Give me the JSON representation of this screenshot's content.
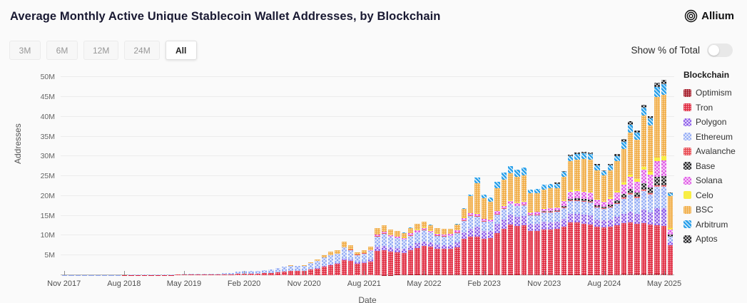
{
  "header": {
    "title": "Average Monthly Active Unique Stablecoin Wallet Addresses, by Blockchain",
    "brand": "Allium"
  },
  "controls": {
    "range_buttons": [
      {
        "label": "3M",
        "selected": false
      },
      {
        "label": "6M",
        "selected": false
      },
      {
        "label": "12M",
        "selected": false
      },
      {
        "label": "24M",
        "selected": false
      },
      {
        "label": "All",
        "selected": true
      }
    ],
    "toggle": {
      "label": "Show % of Total",
      "on": false
    }
  },
  "chart_data": {
    "type": "bar",
    "stacked": true,
    "title": "Average Monthly Active Unique Stablecoin Wallet Addresses, by Blockchain",
    "xlabel": "Date",
    "ylabel": "Addresses",
    "legend_title": "Blockchain",
    "legend_position": "right",
    "grid": true,
    "unit": "millions of addresses",
    "x_start": "Nov 2017",
    "x_end": "Jun 2025",
    "x_interval": "monthly",
    "n_bars": 92,
    "ylim": [
      0,
      51.5
    ],
    "ytick_values": [
      5,
      10,
      15,
      20,
      25,
      30,
      35,
      40,
      45,
      50
    ],
    "ytick_suffix": "M",
    "xtick_indices": [
      0,
      9,
      18,
      27,
      36,
      45,
      54,
      63,
      72,
      81,
      90
    ],
    "xtick_labels": [
      "Nov 2017",
      "Aug 2018",
      "May 2019",
      "Feb 2020",
      "Nov 2020",
      "Aug 2021",
      "May 2022",
      "Feb 2023",
      "Nov 2023",
      "Aug 2024",
      "May 2025"
    ],
    "series": [
      {
        "name": "Optimism",
        "color": "#a11220",
        "pattern": "dots",
        "values": [
          0,
          0,
          0,
          0,
          0,
          0,
          0,
          0,
          0,
          0,
          0,
          0,
          0,
          0,
          0,
          0,
          0,
          0,
          0,
          0,
          0,
          0,
          0,
          0,
          0,
          0,
          0,
          0,
          0,
          0,
          0,
          0,
          0,
          0,
          0,
          0,
          0,
          0,
          0,
          0,
          0,
          0,
          0,
          0,
          0,
          0,
          0,
          0,
          0.05,
          0.05,
          0.1,
          0.1,
          0.1,
          0.1,
          0.15,
          0.15,
          0.1,
          0.1,
          0.1,
          0.1,
          0.15,
          0.2,
          0.2,
          0.15,
          0.15,
          0.2,
          0.2,
          0.25,
          0.2,
          0.2,
          0.15,
          0.15,
          0.2,
          0.2,
          0.2,
          0.2,
          0.25,
          0.25,
          0.25,
          0.25,
          0.2,
          0.2,
          0.2,
          0.25,
          0.3,
          0.3,
          0.3,
          0.3,
          0.3,
          0.35,
          0.35,
          0.15
        ]
      },
      {
        "name": "Tron",
        "color": "#df2239",
        "pattern": "dots",
        "values": [
          0,
          0,
          0,
          0,
          0,
          0,
          0,
          0.01,
          0.01,
          0.02,
          0.02,
          0.03,
          0.04,
          0.05,
          0.05,
          0.06,
          0.08,
          0.1,
          0.12,
          0.14,
          0.16,
          0.18,
          0.2,
          0.22,
          0.24,
          0.26,
          0.3,
          0.4,
          0.35,
          0.4,
          0.5,
          0.6,
          0.7,
          0.9,
          1.0,
          1.0,
          1.1,
          1.4,
          1.7,
          2.2,
          2.6,
          2.8,
          3.8,
          3.6,
          2.9,
          3.0,
          3.5,
          6.2,
          6.3,
          5.9,
          5.7,
          5.5,
          6.2,
          6.8,
          7.2,
          7.0,
          6.6,
          6.5,
          6.5,
          7.0,
          9.0,
          9.5,
          9.5,
          9.0,
          9.2,
          10.5,
          11.5,
          12.5,
          12.2,
          12.4,
          11.0,
          11.0,
          11.4,
          11.3,
          11.5,
          12.0,
          13.0,
          13.0,
          12.8,
          12.6,
          12.0,
          11.8,
          12.0,
          12.4,
          12.8,
          13.0,
          12.6,
          12.8,
          12.4,
          12.2,
          12.0,
          7.5
        ]
      },
      {
        "name": "Polygon",
        "color": "#8856e8",
        "pattern": "cross",
        "values": [
          0,
          0,
          0,
          0,
          0,
          0,
          0,
          0,
          0,
          0,
          0,
          0,
          0,
          0,
          0,
          0,
          0,
          0,
          0,
          0,
          0,
          0,
          0,
          0,
          0,
          0,
          0,
          0,
          0,
          0,
          0,
          0,
          0,
          0,
          0,
          0,
          0.02,
          0.05,
          0.05,
          0.1,
          0.15,
          0.2,
          0.3,
          0.3,
          0.3,
          0.4,
          0.5,
          1.0,
          1.1,
          1.0,
          1.0,
          1.0,
          1.1,
          1.2,
          1.2,
          1.1,
          1.0,
          1.0,
          1.0,
          1.2,
          1.6,
          2.0,
          2.5,
          2.0,
          1.8,
          2.2,
          2.4,
          2.5,
          2.4,
          2.4,
          1.8,
          1.8,
          1.9,
          1.9,
          1.8,
          2.0,
          2.2,
          2.2,
          2.2,
          2.2,
          1.9,
          1.8,
          1.9,
          2.1,
          2.4,
          2.8,
          2.6,
          3.4,
          3.2,
          4.4,
          4.5,
          0.8
        ]
      },
      {
        "name": "Ethereum",
        "color": "#90a9f4",
        "pattern": "cross",
        "values": [
          0.03,
          0.05,
          0.06,
          0.05,
          0.05,
          0.05,
          0.06,
          0.06,
          0.06,
          0.07,
          0.08,
          0.09,
          0.1,
          0.12,
          0.13,
          0.14,
          0.15,
          0.16,
          0.18,
          0.2,
          0.21,
          0.2,
          0.21,
          0.2,
          0.23,
          0.25,
          0.6,
          0.75,
          0.65,
          0.7,
          0.8,
          0.9,
          1.1,
          1.3,
          1.4,
          1.3,
          1.3,
          1.6,
          1.9,
          2.2,
          2.3,
          2.4,
          2.9,
          2.4,
          1.9,
          2.0,
          2.1,
          2.6,
          3.0,
          2.7,
          2.5,
          2.4,
          2.6,
          2.7,
          2.8,
          2.5,
          2.3,
          2.2,
          2.3,
          2.4,
          3.0,
          3.2,
          2.6,
          2.4,
          2.3,
          2.5,
          2.6,
          2.7,
          2.6,
          2.6,
          2.2,
          2.2,
          2.3,
          2.4,
          2.5,
          2.8,
          3.2,
          3.3,
          3.3,
          3.3,
          3.0,
          2.9,
          3.0,
          3.3,
          3.8,
          4.3,
          4.0,
          4.8,
          4.5,
          5.4,
          5.5,
          1.2
        ]
      },
      {
        "name": "Avalanche",
        "color": "#e8444c",
        "pattern": "dots",
        "values": [
          0,
          0,
          0,
          0,
          0,
          0,
          0,
          0,
          0,
          0,
          0,
          0,
          0,
          0,
          0,
          0,
          0,
          0,
          0,
          0,
          0,
          0,
          0,
          0,
          0,
          0,
          0,
          0,
          0,
          0,
          0,
          0,
          0,
          0,
          0,
          0,
          0,
          0,
          0,
          0,
          0,
          0.05,
          0.1,
          0.1,
          0.05,
          0.1,
          0.1,
          0.15,
          0.15,
          0.1,
          0.05,
          0.05,
          0.1,
          0.1,
          0.1,
          0.1,
          0.1,
          0.1,
          0.1,
          0.1,
          0.15,
          0.15,
          0.15,
          0.1,
          0.1,
          0.15,
          0.15,
          0.15,
          0.15,
          0.15,
          0.1,
          0.1,
          0.15,
          0.15,
          0.15,
          0.15,
          0.2,
          0.2,
          0.2,
          0.2,
          0.15,
          0.15,
          0.15,
          0.2,
          0.25,
          0.25,
          0.25,
          0.3,
          0.3,
          0.35,
          0.35,
          0.1
        ]
      },
      {
        "name": "Base",
        "color": "#17171a",
        "pattern": "cross",
        "values": [
          0,
          0,
          0,
          0,
          0,
          0,
          0,
          0,
          0,
          0,
          0,
          0,
          0,
          0,
          0,
          0,
          0,
          0,
          0,
          0,
          0,
          0,
          0,
          0,
          0,
          0,
          0,
          0,
          0,
          0,
          0,
          0,
          0,
          0,
          0,
          0,
          0,
          0,
          0,
          0,
          0,
          0,
          0,
          0,
          0,
          0,
          0,
          0,
          0,
          0,
          0,
          0,
          0,
          0,
          0,
          0,
          0,
          0,
          0,
          0,
          0,
          0,
          0,
          0,
          0,
          0,
          0,
          0,
          0,
          0.1,
          0.15,
          0.15,
          0.2,
          0.2,
          0.2,
          0.3,
          0.5,
          0.5,
          0.5,
          0.5,
          0.4,
          0.4,
          0.5,
          0.7,
          0.9,
          1.2,
          1.1,
          1.6,
          1.5,
          2.2,
          2.3,
          0.5
        ]
      },
      {
        "name": "Solana",
        "color": "#de52e4",
        "pattern": "cross",
        "values": [
          0,
          0,
          0,
          0,
          0,
          0,
          0,
          0,
          0,
          0,
          0,
          0,
          0,
          0,
          0,
          0,
          0,
          0,
          0,
          0,
          0,
          0,
          0,
          0,
          0,
          0,
          0,
          0,
          0,
          0,
          0,
          0,
          0,
          0,
          0,
          0,
          0,
          0,
          0,
          0,
          0,
          0,
          0,
          0,
          0,
          0.05,
          0.1,
          0.3,
          0.35,
          0.3,
          0.4,
          0.4,
          0.5,
          0.5,
          0.5,
          0.4,
          0.4,
          0.4,
          0.4,
          0.5,
          0.6,
          0.6,
          0.6,
          0.5,
          0.5,
          0.6,
          0.7,
          0.7,
          0.7,
          0.7,
          0.5,
          0.6,
          0.6,
          0.7,
          0.8,
          1.2,
          1.8,
          1.8,
          1.8,
          1.8,
          1.4,
          1.3,
          1.5,
          1.9,
          2.5,
          3.0,
          2.8,
          3.4,
          3.2,
          3.9,
          4.0,
          1.2
        ]
      },
      {
        "name": "Celo",
        "color": "#f8ee44",
        "pattern": "solid",
        "values": [
          0,
          0,
          0,
          0,
          0,
          0,
          0,
          0,
          0,
          0,
          0,
          0,
          0,
          0,
          0,
          0,
          0,
          0,
          0,
          0,
          0,
          0,
          0,
          0,
          0,
          0,
          0,
          0,
          0,
          0,
          0,
          0,
          0,
          0,
          0,
          0,
          0,
          0,
          0,
          0,
          0,
          0,
          0,
          0,
          0,
          0,
          0,
          0,
          0,
          0,
          0.05,
          0.05,
          0.05,
          0.05,
          0.05,
          0.05,
          0.05,
          0.05,
          0.05,
          0.05,
          0.05,
          0.05,
          0.1,
          0.1,
          0.1,
          0.1,
          0.1,
          0.1,
          0.1,
          0.1,
          0.1,
          0.1,
          0.15,
          0.15,
          0.1,
          0.2,
          0.3,
          0.3,
          0.3,
          0.3,
          0.3,
          0.2,
          0.3,
          0.4,
          0.5,
          0.6,
          0.6,
          0.8,
          0.7,
          0.9,
          1.0,
          0.5
        ]
      },
      {
        "name": "BSC",
        "color": "#f0a93e",
        "pattern": "dots",
        "values": [
          0,
          0,
          0,
          0,
          0,
          0,
          0,
          0,
          0,
          0,
          0,
          0,
          0,
          0,
          0,
          0,
          0,
          0,
          0,
          0,
          0,
          0,
          0,
          0,
          0,
          0,
          0,
          0,
          0,
          0,
          0,
          0,
          0,
          0,
          0.1,
          0.1,
          0.1,
          0.15,
          0.3,
          0.6,
          0.9,
          0.9,
          1.4,
          1.1,
          0.6,
          0.7,
          0.9,
          1.6,
          1.6,
          1.5,
          1.3,
          1.2,
          1.3,
          1.5,
          1.5,
          1.4,
          1.3,
          1.3,
          1.2,
          1.4,
          2.2,
          4.3,
          7.5,
          5.3,
          4.5,
          5.8,
          6.5,
          6.8,
          6.5,
          6.6,
          4.7,
          4.7,
          4.8,
          4.9,
          4.8,
          6.0,
          7.3,
          7.6,
          8.0,
          8.0,
          7.2,
          6.5,
          7.0,
          7.5,
          8.5,
          10.5,
          10.0,
          13.0,
          11.8,
          15.3,
          15.5,
          8.0
        ]
      },
      {
        "name": "Arbitrum",
        "color": "#2ea2ea",
        "pattern": "diag",
        "values": [
          0,
          0,
          0,
          0,
          0,
          0,
          0,
          0,
          0,
          0,
          0,
          0,
          0,
          0,
          0,
          0,
          0,
          0,
          0,
          0,
          0,
          0,
          0,
          0,
          0,
          0,
          0,
          0,
          0,
          0,
          0,
          0,
          0,
          0,
          0,
          0,
          0,
          0,
          0,
          0,
          0,
          0,
          0,
          0,
          0,
          0,
          0,
          0.1,
          0.1,
          0.05,
          0.05,
          0.05,
          0.1,
          0.1,
          0.1,
          0.1,
          0.1,
          0.1,
          0.1,
          0.2,
          0.2,
          0.4,
          1.5,
          0.8,
          1.0,
          1.5,
          1.8,
          1.9,
          1.8,
          1.9,
          1.0,
          1.0,
          1.1,
          1.2,
          1.1,
          1.2,
          1.3,
          1.4,
          1.5,
          1.4,
          1.2,
          1.0,
          1.2,
          1.4,
          1.8,
          2.1,
          1.7,
          2.0,
          1.8,
          2.6,
          2.7,
          0.8
        ]
      },
      {
        "name": "Aptos",
        "color": "#17171a",
        "pattern": "cross",
        "values": [
          0,
          0,
          0,
          0,
          0,
          0,
          0,
          0,
          0,
          0,
          0,
          0,
          0,
          0,
          0,
          0,
          0,
          0,
          0,
          0,
          0,
          0,
          0,
          0,
          0,
          0,
          0,
          0,
          0,
          0,
          0,
          0,
          0,
          0,
          0,
          0,
          0,
          0,
          0,
          0,
          0,
          0,
          0,
          0,
          0,
          0,
          0,
          0,
          0,
          0,
          0,
          0,
          0,
          0,
          0,
          0,
          0,
          0,
          0,
          0,
          0,
          0,
          0,
          0,
          0,
          0,
          0,
          0,
          0,
          0,
          0,
          0,
          0,
          0,
          0.2,
          0.3,
          0.4,
          0.4,
          0.4,
          0.4,
          0.3,
          0.3,
          0.3,
          0.4,
          0.6,
          0.8,
          0.6,
          0.6,
          0.5,
          1.0,
          1.1,
          0.2
        ]
      }
    ]
  }
}
